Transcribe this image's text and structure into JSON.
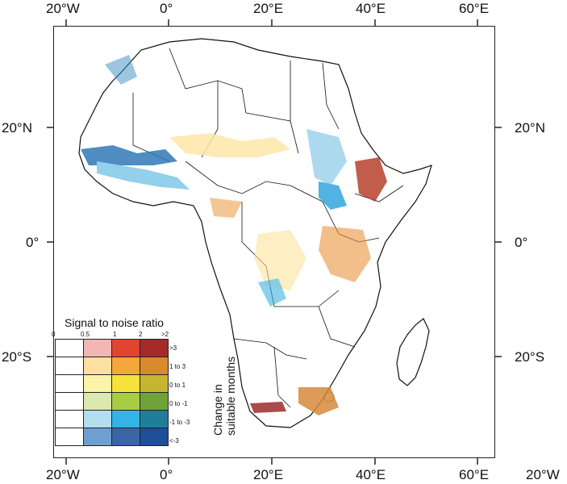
{
  "map": {
    "top_labels": [
      "20°W",
      "0°",
      "20°E",
      "40°E",
      "60°E"
    ],
    "bottom_labels": [
      "20°W",
      "0°",
      "20°E",
      "40°E",
      "60°E",
      "20°W"
    ],
    "left_labels": [
      "20°N",
      "0°",
      "20°S"
    ],
    "right_labels": [
      "20°N",
      "0°",
      "20°S"
    ]
  },
  "legend": {
    "title": "Signal to noise ratio",
    "snr_ticks": [
      "0",
      "0.5",
      "1",
      "2",
      ">2"
    ],
    "row_labels": [
      ">3",
      "1 to 3",
      "0 to 1",
      "0 to -1",
      "-1 to -3",
      "<-3"
    ],
    "side_title_line1": "Change in",
    "side_title_line2": "suitable months",
    "colors": [
      [
        "#ffffff",
        "#f2b6b4",
        "#e0452e",
        "#a52a2a"
      ],
      [
        "#ffffff",
        "#fde0a0",
        "#f5a83a",
        "#d98a2c"
      ],
      [
        "#ffffff",
        "#fbf3a8",
        "#f6e23a",
        "#c6b530"
      ],
      [
        "#ffffff",
        "#dde8b0",
        "#a9cc45",
        "#6fa33a"
      ],
      [
        "#ffffff",
        "#b3def0",
        "#34b3e6",
        "#1f7f9a"
      ],
      [
        "#ffffff",
        "#6f9fcf",
        "#3a66a8",
        "#1d4e96"
      ]
    ]
  }
}
